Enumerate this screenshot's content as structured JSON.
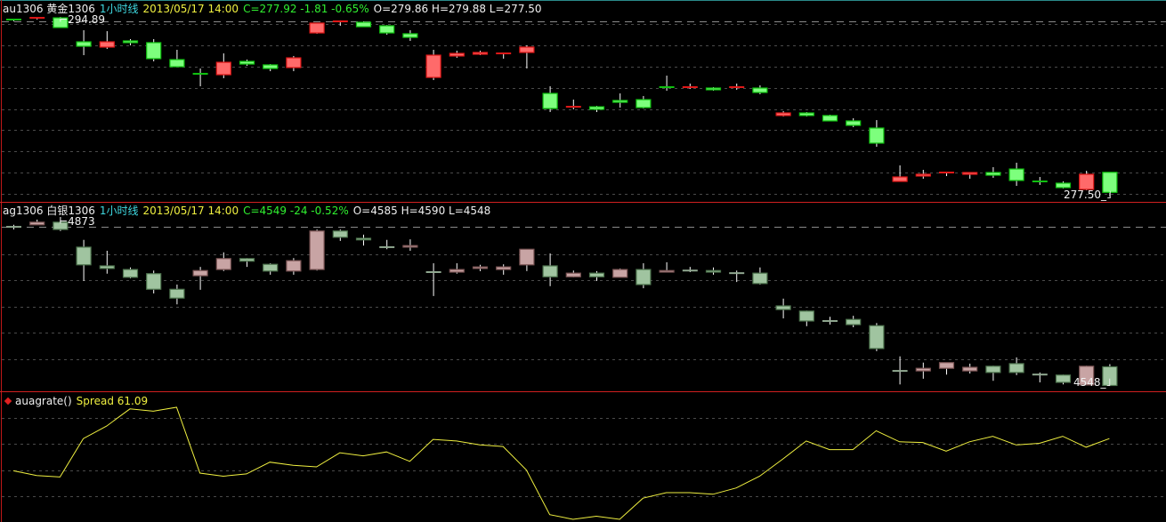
{
  "colors": {
    "up_gold": "#ff4a4a",
    "down_gold": "#44ff44",
    "up_silver": "#c49c9c",
    "down_silver": "#94b894",
    "spread": "#f0f040",
    "panel_border": "#d02020",
    "grid": "#5a5a5a"
  },
  "gold_panel": {
    "symbol": "au1306 黄金1306",
    "period": "1小时线",
    "datetime": "2013/05/17 14:00",
    "change": "C=277.92 -1.81 -0.65%",
    "ohlc": "O=279.86 H=279.88 L=277.50",
    "high_label": "294.89",
    "low_label": "277.50"
  },
  "silver_panel": {
    "symbol": "ag1306 白银1306",
    "period": "1小时线",
    "datetime": "2013/05/17 14:00",
    "change": "C=4549 -24 -0.52%",
    "ohlc": "O=4585 H=4590 L=4548",
    "high_label": "4873",
    "low_label": "4548"
  },
  "spread_panel": {
    "indicator": "auagrate()",
    "label": "Spread 61.09",
    "icon": "diamond-icon"
  },
  "chart_data": [
    {
      "type": "candlestick",
      "title": "au1306 黄金1306 1小时线",
      "ylim": [
        277.5,
        294.89
      ],
      "grid": true,
      "ohlc": [
        [
          294.63,
          294.72,
          294.46,
          294.55
        ],
        [
          294.72,
          294.8,
          294.63,
          294.8
        ],
        [
          294.8,
          294.89,
          293.86,
          293.86
        ],
        [
          292.48,
          293.6,
          291.19,
          292.05
        ],
        [
          291.97,
          293.51,
          291.79,
          292.48
        ],
        [
          292.57,
          292.74,
          292.14,
          292.4
        ],
        [
          292.4,
          292.74,
          290.59,
          290.85
        ],
        [
          290.76,
          291.71,
          290.07,
          290.07
        ],
        [
          289.39,
          289.9,
          288.18,
          289.3
        ],
        [
          289.3,
          291.36,
          288.96,
          290.5
        ],
        [
          290.59,
          290.76,
          290.16,
          290.33
        ],
        [
          290.25,
          290.33,
          289.64,
          289.9
        ],
        [
          289.99,
          291.11,
          289.64,
          290.93
        ],
        [
          293.34,
          294.29,
          293.26,
          294.29
        ],
        [
          294.37,
          294.55,
          294.03,
          294.46
        ],
        [
          294.37,
          294.46,
          293.94,
          293.94
        ],
        [
          294.03,
          294.1,
          293.17,
          293.34
        ],
        [
          293.26,
          293.6,
          292.57,
          292.91
        ],
        [
          289.04,
          291.71,
          288.78,
          291.19
        ],
        [
          291.11,
          291.62,
          290.93,
          291.36
        ],
        [
          291.28,
          291.62,
          291.19,
          291.45
        ],
        [
          291.28,
          291.45,
          290.85,
          291.36
        ],
        [
          291.45,
          292.14,
          289.9,
          291.97
        ],
        [
          287.49,
          288.18,
          285.69,
          286.03
        ],
        [
          286.12,
          286.89,
          285.95,
          286.2
        ],
        [
          286.2,
          286.29,
          285.69,
          285.95
        ],
        [
          286.81,
          287.49,
          286.12,
          286.63
        ],
        [
          286.89,
          287.24,
          286.03,
          286.12
        ],
        [
          288.1,
          289.21,
          287.75,
          288.01
        ],
        [
          288.01,
          288.44,
          287.92,
          288.1
        ],
        [
          288.01,
          288.1,
          287.75,
          287.84
        ],
        [
          288.01,
          288.44,
          287.84,
          288.1
        ],
        [
          288.01,
          288.27,
          287.41,
          287.58
        ],
        [
          285.35,
          285.78,
          285.26,
          285.6
        ],
        [
          285.6,
          285.69,
          285.26,
          285.35
        ],
        [
          285.35,
          285.43,
          284.83,
          284.83
        ],
        [
          284.83,
          285.09,
          284.23,
          284.4
        ],
        [
          284.14,
          284.91,
          282.33,
          282.68
        ],
        [
          278.98,
          280.53,
          278.98,
          279.41
        ],
        [
          279.5,
          280.1,
          279.24,
          279.67
        ],
        [
          279.76,
          279.84,
          279.5,
          279.84
        ],
        [
          279.67,
          279.84,
          279.24,
          279.84
        ],
        [
          279.84,
          280.36,
          279.33,
          279.58
        ],
        [
          280.18,
          280.79,
          278.55,
          279.07
        ],
        [
          278.98,
          279.41,
          278.64,
          278.9
        ],
        [
          278.81,
          278.98,
          278.29,
          278.38
        ],
        [
          278.21,
          280.01,
          278.12,
          279.67
        ],
        [
          279.86,
          279.88,
          277.5,
          277.92
        ]
      ]
    },
    {
      "type": "candlestick",
      "title": "ag1306 白银1306 1小时线",
      "ylim": [
        4548,
        4873
      ],
      "grid": true,
      "ohlc": [
        [
          4854,
          4858,
          4849,
          4854
        ],
        [
          4858,
          4868,
          4858,
          4863
        ],
        [
          4863,
          4873,
          4846,
          4849
        ],
        [
          4815,
          4829,
          4750,
          4781
        ],
        [
          4779,
          4808,
          4764,
          4774
        ],
        [
          4772,
          4776,
          4755,
          4757
        ],
        [
          4764,
          4770,
          4726,
          4734
        ],
        [
          4734,
          4743,
          4705,
          4717
        ],
        [
          4760,
          4777,
          4733,
          4770
        ],
        [
          4772,
          4805,
          4769,
          4793
        ],
        [
          4793,
          4794,
          4777,
          4788
        ],
        [
          4782,
          4784,
          4762,
          4769
        ],
        [
          4769,
          4794,
          4762,
          4789
        ],
        [
          4772,
          4849,
          4770,
          4846
        ],
        [
          4846,
          4849,
          4827,
          4834
        ],
        [
          4832,
          4839,
          4818,
          4829
        ],
        [
          4815,
          4829,
          4811,
          4815
        ],
        [
          4815,
          4830,
          4808,
          4818
        ],
        [
          4767,
          4784,
          4721,
          4767
        ],
        [
          4767,
          4784,
          4764,
          4772
        ],
        [
          4774,
          4781,
          4769,
          4777
        ],
        [
          4772,
          4782,
          4762,
          4777
        ],
        [
          4781,
          4811,
          4769,
          4811
        ],
        [
          4779,
          4803,
          4740,
          4758
        ],
        [
          4758,
          4770,
          4757,
          4765
        ],
        [
          4765,
          4769,
          4750,
          4758
        ],
        [
          4757,
          4774,
          4757,
          4772
        ],
        [
          4772,
          4784,
          4736,
          4743
        ],
        [
          4767,
          4786,
          4767,
          4770
        ],
        [
          4770,
          4777,
          4767,
          4770
        ],
        [
          4770,
          4776,
          4762,
          4767
        ],
        [
          4765,
          4770,
          4748,
          4765
        ],
        [
          4765,
          4776,
          4743,
          4745
        ],
        [
          4702,
          4716,
          4678,
          4695
        ],
        [
          4692,
          4693,
          4663,
          4673
        ],
        [
          4673,
          4681,
          4666,
          4673
        ],
        [
          4676,
          4683,
          4661,
          4666
        ],
        [
          4664,
          4669,
          4615,
          4620
        ],
        [
          4577,
          4605,
          4551,
          4577
        ],
        [
          4577,
          4593,
          4562,
          4582
        ],
        [
          4582,
          4593,
          4570,
          4593
        ],
        [
          4577,
          4591,
          4572,
          4584
        ],
        [
          4586,
          4587,
          4558,
          4574
        ],
        [
          4591,
          4603,
          4569,
          4574
        ],
        [
          4570,
          4574,
          4555,
          4570
        ],
        [
          4569,
          4570,
          4551,
          4555
        ],
        [
          4550,
          4587,
          4550,
          4586
        ],
        [
          4585,
          4590,
          4548,
          4549
        ]
      ]
    },
    {
      "type": "line",
      "title": "auagrate() Spread",
      "grid": true,
      "ylim": [
        60.0,
        61.6
      ],
      "series": [
        {
          "name": "Spread",
          "values": [
            60.68,
            60.62,
            60.6,
            61.09,
            61.25,
            61.47,
            61.44,
            61.49,
            60.65,
            60.61,
            60.64,
            60.79,
            60.75,
            60.73,
            60.91,
            60.87,
            60.92,
            60.8,
            61.08,
            61.06,
            61.01,
            60.99,
            60.69,
            60.12,
            60.06,
            60.1,
            60.06,
            60.33,
            60.4,
            60.4,
            60.38,
            60.46,
            60.61,
            60.83,
            61.06,
            60.95,
            60.95,
            61.19,
            61.05,
            61.04,
            60.93,
            61.05,
            61.12,
            61.01,
            61.03,
            61.12,
            60.98,
            61.09
          ]
        }
      ]
    }
  ]
}
